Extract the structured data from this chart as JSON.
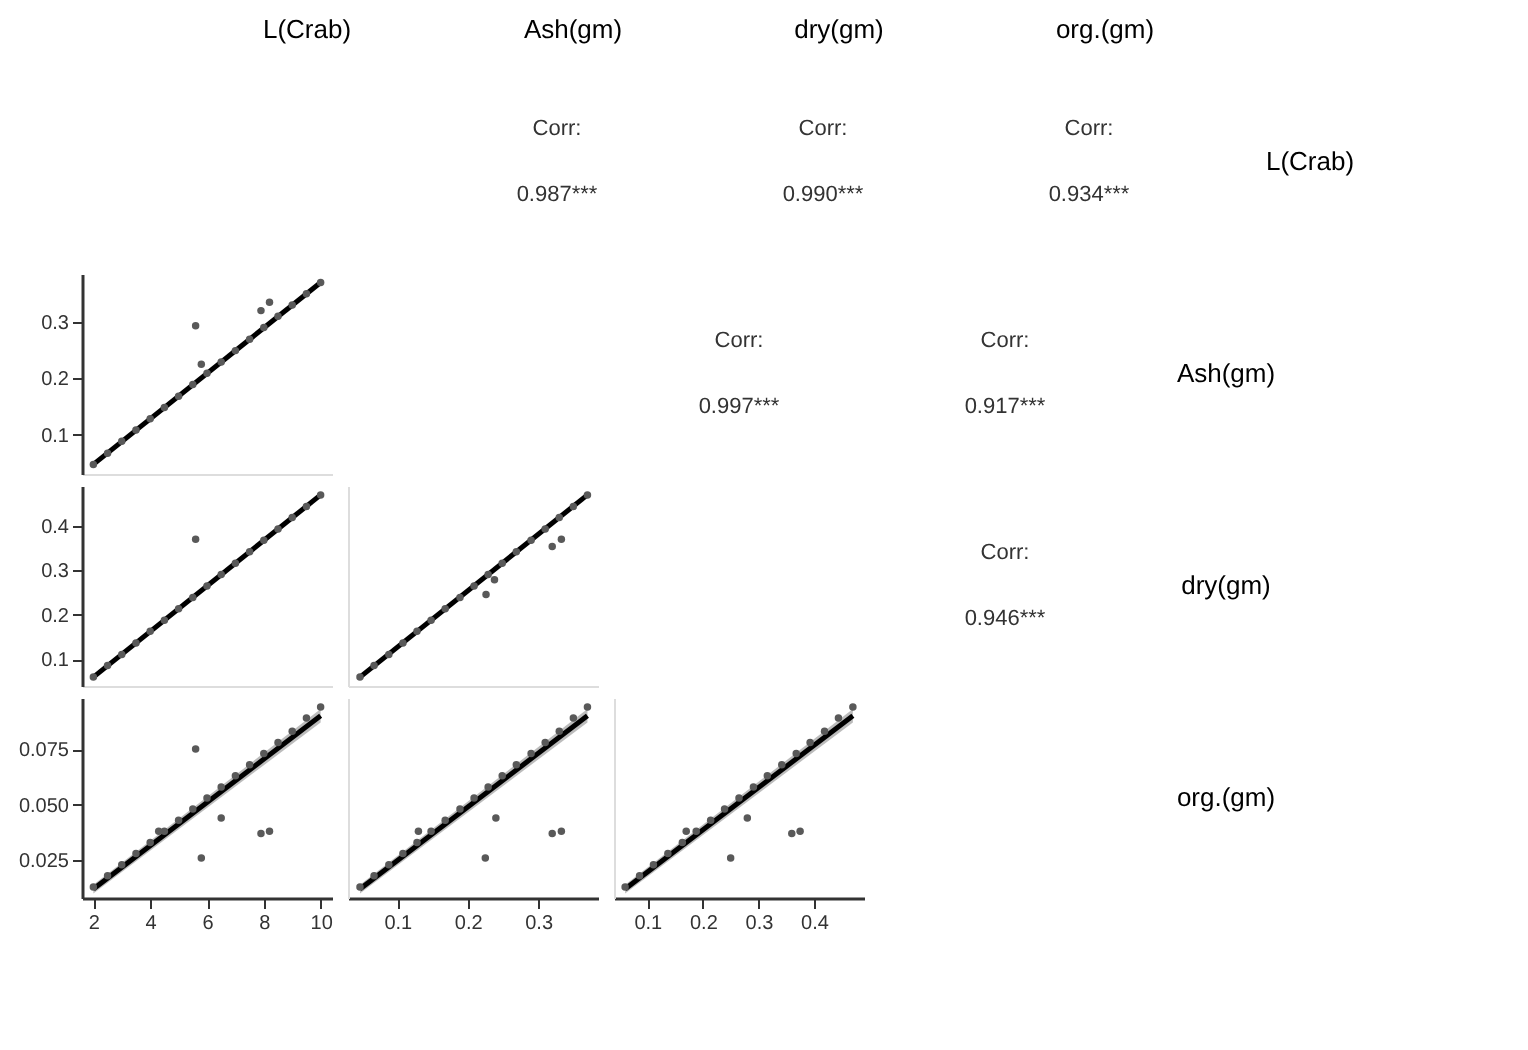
{
  "chart_data": [
    {
      "type": "other",
      "annotations": [
        "L(Crab)",
        "Ash(gm)",
        "dry(gm)",
        "org.(gm)"
      ]
    },
    {
      "type": "other",
      "annotations": [
        "L(Crab)",
        "Ash(gm)",
        "dry(gm)",
        "org.(gm)"
      ]
    },
    {
      "type": "other",
      "annotations": [
        "Corr:",
        "0.987***"
      ]
    },
    {
      "type": "other",
      "annotations": [
        "Corr:",
        "0.990***"
      ]
    },
    {
      "type": "other",
      "annotations": [
        "Corr:",
        "0.934***"
      ]
    },
    {
      "type": "scatter",
      "marker": "circle",
      "grid": false,
      "tick_labels": "y",
      "xlim": [
        1.6,
        10.4
      ],
      "ylim": [
        0.03,
        0.385
      ],
      "yticks": [
        0.1,
        0.2,
        0.3
      ],
      "series": [
        {
          "type": "scatter",
          "color": "#595959",
          "x": [
            2,
            2.5,
            3,
            3.5,
            4,
            4.5,
            5,
            5.5,
            6,
            6.5,
            7,
            7.5,
            8,
            8.5,
            9,
            9.5,
            10,
            5.6,
            5.8,
            7.9,
            8.2
          ],
          "values": [
            0.047,
            0.067,
            0.088,
            0.108,
            0.128,
            0.148,
            0.168,
            0.189,
            0.209,
            0.229,
            0.249,
            0.269,
            0.29,
            0.31,
            0.33,
            0.35,
            0.37,
            0.293,
            0.225,
            0.32,
            0.335
          ]
        },
        {
          "type": "line",
          "marker": "none",
          "color": "#000000",
          "x": [
            2,
            10
          ],
          "values": [
            0.047,
            0.37
          ]
        }
      ]
    },
    {
      "type": "other",
      "annotations": [
        "Corr:",
        "0.997***"
      ]
    },
    {
      "type": "other",
      "annotations": [
        "Corr:",
        "0.917***"
      ]
    },
    {
      "type": "scatter",
      "marker": "circle",
      "grid": false,
      "tick_labels": "y",
      "xlim": [
        1.6,
        10.4
      ],
      "ylim": [
        0.04,
        0.49
      ],
      "yticks": [
        0.1,
        0.2,
        0.3,
        0.4
      ],
      "series": [
        {
          "type": "scatter",
          "color": "#595959",
          "x": [
            2,
            2.5,
            3,
            3.5,
            4,
            4.5,
            5,
            5.5,
            6,
            6.5,
            7,
            7.5,
            8,
            8.5,
            9,
            9.5,
            10,
            5.6
          ],
          "values": [
            0.06,
            0.086,
            0.111,
            0.137,
            0.163,
            0.188,
            0.214,
            0.239,
            0.265,
            0.291,
            0.316,
            0.342,
            0.368,
            0.393,
            0.419,
            0.444,
            0.47,
            0.37
          ]
        },
        {
          "type": "line",
          "marker": "none",
          "color": "#000000",
          "x": [
            2,
            10
          ],
          "values": [
            0.06,
            0.47
          ]
        }
      ]
    },
    {
      "type": "scatter",
      "marker": "circle",
      "grid": false,
      "tick_labels": false,
      "xlim": [
        0.03,
        0.385
      ],
      "ylim": [
        0.04,
        0.49
      ],
      "series": [
        {
          "type": "scatter",
          "color": "#595959",
          "x": [
            0.047,
            0.067,
            0.088,
            0.108,
            0.128,
            0.148,
            0.168,
            0.189,
            0.209,
            0.229,
            0.249,
            0.269,
            0.29,
            0.31,
            0.33,
            0.35,
            0.37,
            0.226,
            0.238,
            0.32,
            0.333
          ],
          "values": [
            0.06,
            0.086,
            0.111,
            0.137,
            0.163,
            0.188,
            0.214,
            0.239,
            0.265,
            0.291,
            0.316,
            0.342,
            0.368,
            0.393,
            0.419,
            0.444,
            0.47,
            0.246,
            0.279,
            0.354,
            0.37
          ]
        },
        {
          "type": "line",
          "marker": "none",
          "color": "#000000",
          "x": [
            0.047,
            0.37
          ],
          "values": [
            0.06,
            0.47
          ]
        }
      ]
    },
    {
      "type": "other",
      "annotations": [
        "Corr:",
        "0.946***"
      ]
    },
    {
      "type": "scatter",
      "marker": "circle",
      "grid": false,
      "xlim": [
        1.6,
        10.4
      ],
      "ylim": [
        0.008,
        0.098
      ],
      "xticks": [
        2,
        4,
        6,
        8,
        10
      ],
      "yticks": [
        0.025,
        {
          "value": 0.05,
          "label": "0.050"
        },
        0.075
      ],
      "series": [
        {
          "type": "scatter",
          "color": "#595959",
          "x": [
            2,
            2.5,
            3,
            3.5,
            4,
            4.5,
            5,
            5.5,
            6,
            6.5,
            7,
            7.5,
            8,
            8.5,
            9,
            9.5,
            10,
            5.6,
            5.8,
            6.5,
            7.9,
            8.2,
            4.3
          ],
          "values": [
            0.013,
            0.018,
            0.023,
            0.028,
            0.033,
            0.038,
            0.043,
            0.048,
            0.053,
            0.058,
            0.063,
            0.068,
            0.073,
            0.078,
            0.083,
            0.089,
            0.094,
            0.075,
            0.026,
            0.044,
            0.037,
            0.038,
            0.038
          ]
        },
        {
          "type": "line",
          "marker": "none",
          "color": "#000000",
          "x": [
            2,
            10
          ],
          "values": [
            0.012,
            0.09
          ],
          "lower": [
            0.01,
            0.087
          ],
          "upper": [
            0.014,
            0.093
          ]
        }
      ]
    },
    {
      "type": "scatter",
      "marker": "circle",
      "grid": false,
      "tick_labels": "x",
      "xlim": [
        0.03,
        0.385
      ],
      "ylim": [
        0.008,
        0.098
      ],
      "xticks": [
        0.1,
        0.2,
        0.3
      ],
      "series": [
        {
          "type": "scatter",
          "color": "#595959",
          "x": [
            0.047,
            0.067,
            0.088,
            0.108,
            0.128,
            0.148,
            0.168,
            0.189,
            0.209,
            0.229,
            0.249,
            0.269,
            0.29,
            0.31,
            0.33,
            0.35,
            0.37,
            0.24,
            0.225,
            0.32,
            0.333,
            0.13
          ],
          "values": [
            0.013,
            0.018,
            0.023,
            0.028,
            0.033,
            0.038,
            0.043,
            0.048,
            0.053,
            0.058,
            0.063,
            0.068,
            0.073,
            0.078,
            0.083,
            0.089,
            0.094,
            0.044,
            0.026,
            0.037,
            0.038,
            0.038
          ]
        },
        {
          "type": "line",
          "marker": "none",
          "color": "#000000",
          "x": [
            0.047,
            0.37
          ],
          "values": [
            0.012,
            0.09
          ],
          "lower": [
            0.01,
            0.087
          ],
          "upper": [
            0.014,
            0.093
          ]
        }
      ]
    },
    {
      "type": "scatter",
      "marker": "circle",
      "grid": false,
      "tick_labels": "x",
      "xlim": [
        0.04,
        0.49
      ],
      "ylim": [
        0.008,
        0.098
      ],
      "xticks": [
        0.1,
        0.2,
        0.3,
        0.4
      ],
      "series": [
        {
          "type": "scatter",
          "color": "#595959",
          "x": [
            0.06,
            0.086,
            0.111,
            0.137,
            0.163,
            0.188,
            0.214,
            0.239,
            0.265,
            0.291,
            0.316,
            0.342,
            0.368,
            0.393,
            0.419,
            0.444,
            0.47,
            0.28,
            0.25,
            0.36,
            0.375,
            0.17
          ],
          "values": [
            0.013,
            0.018,
            0.023,
            0.028,
            0.033,
            0.038,
            0.043,
            0.048,
            0.053,
            0.058,
            0.063,
            0.068,
            0.073,
            0.078,
            0.083,
            0.089,
            0.094,
            0.044,
            0.026,
            0.037,
            0.038,
            0.038
          ]
        },
        {
          "type": "line",
          "marker": "none",
          "color": "#000000",
          "x": [
            0.06,
            0.47
          ],
          "values": [
            0.012,
            0.09
          ],
          "lower": [
            0.01,
            0.087
          ],
          "upper": [
            0.014,
            0.093
          ]
        }
      ]
    }
  ]
}
